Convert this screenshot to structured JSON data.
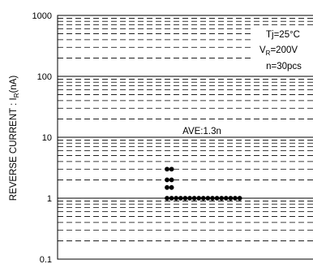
{
  "chart_data": {
    "type": "scatter",
    "title": "",
    "ylabel": {
      "main": "REVERSE CURRENT : I",
      "sub": "R",
      "unit": "(nA)"
    },
    "xlabel": "",
    "y_scale": "log",
    "ylim": [
      0.1,
      1000
    ],
    "y_ticks": [
      {
        "value": 0.1,
        "label": "0.1"
      },
      {
        "value": 1,
        "label": "1"
      },
      {
        "value": 10,
        "label": "10"
      },
      {
        "value": 100,
        "label": "100"
      },
      {
        "value": 1000,
        "label": "1000"
      }
    ],
    "grid": "dashed minor lines, solid decade lines",
    "annotations": {
      "tj": "Tj=25°C",
      "vr_main": "V",
      "vr_sub": "R",
      "vr_value": "=200V",
      "n": "n=30pcs",
      "average": "AVE:1.3n"
    },
    "average_value": 1.3,
    "series": [
      {
        "points": [
          {
            "x": 1,
            "y": 3
          },
          {
            "x": 1,
            "y": 2
          },
          {
            "x": 1,
            "y": 1.5
          },
          {
            "x": 1,
            "y": 1
          },
          {
            "x": 2,
            "y": 3
          },
          {
            "x": 2,
            "y": 2
          },
          {
            "x": 2,
            "y": 1.5
          },
          {
            "x": 2,
            "y": 1
          },
          {
            "x": 3,
            "y": 1
          },
          {
            "x": 4,
            "y": 1
          },
          {
            "x": 5,
            "y": 1
          },
          {
            "x": 6,
            "y": 1
          },
          {
            "x": 7,
            "y": 1
          },
          {
            "x": 8,
            "y": 1
          },
          {
            "x": 9,
            "y": 1
          },
          {
            "x": 10,
            "y": 1
          },
          {
            "x": 11,
            "y": 1
          },
          {
            "x": 12,
            "y": 1
          },
          {
            "x": 13,
            "y": 1
          },
          {
            "x": 14,
            "y": 1
          },
          {
            "x": 15,
            "y": 1
          },
          {
            "x": 16,
            "y": 1
          },
          {
            "x": 17,
            "y": 1
          }
        ]
      }
    ]
  }
}
